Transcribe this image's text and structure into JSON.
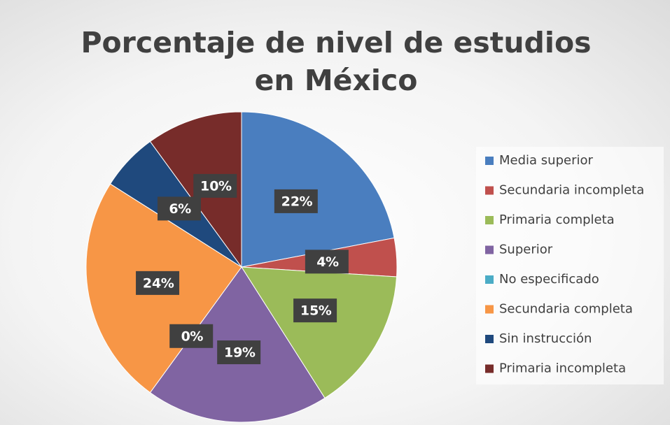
{
  "chart_data": {
    "type": "pie",
    "title": "Porcentaje de nivel de estudios en México",
    "categories": [
      "Media superior",
      "Secundaria incompleta",
      "Primaria completa",
      "Superior",
      "No especificado",
      "Secundaria completa",
      "Sin instrucción",
      "Primaria incompleta"
    ],
    "values": [
      22,
      4,
      15,
      19,
      0,
      24,
      6,
      10
    ],
    "colors": [
      "#4a7ebf",
      "#c0504d",
      "#9bbb59",
      "#8064a2",
      "#4bacc6",
      "#f79646",
      "#1f497d",
      "#772c2a"
    ],
    "legend": "right"
  }
}
